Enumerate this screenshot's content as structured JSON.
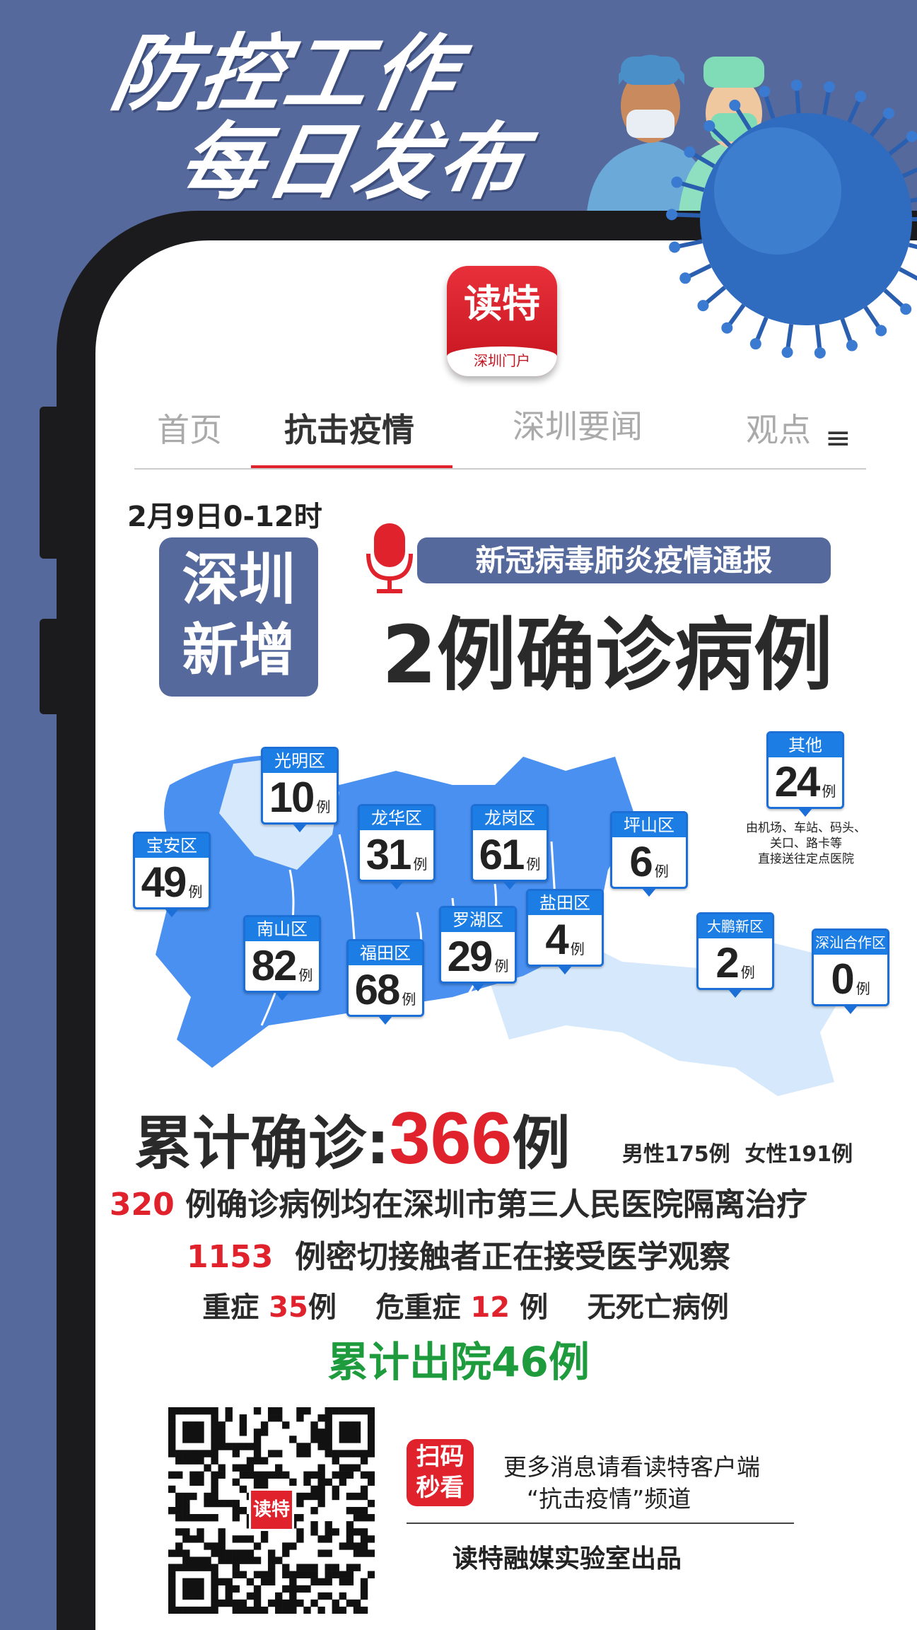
{
  "banner": {
    "line1": "防控工作",
    "line2": "每日发布"
  },
  "logo": {
    "text": "读特",
    "sub": "深圳门户"
  },
  "nav": {
    "tabs": [
      "首页",
      "抗击疫情",
      "深圳要闻",
      "观点"
    ],
    "active": "抗击疫情",
    "menu_icon": "hamburger-icon"
  },
  "report": {
    "date": "2月9日0-12时",
    "box_line1": "深圳",
    "box_line2": "新增",
    "pill": "新冠病毒肺炎疫情通报",
    "headline": "2例确诊病例",
    "mic_icon": "microphone-icon"
  },
  "map": {
    "unit": "例",
    "districts": [
      {
        "name": "宝安区",
        "count": "49"
      },
      {
        "name": "光明区",
        "count": "10"
      },
      {
        "name": "龙华区",
        "count": "31"
      },
      {
        "name": "龙岗区",
        "count": "61"
      },
      {
        "name": "坪山区",
        "count": "6"
      },
      {
        "name": "其他",
        "count": "24"
      },
      {
        "name": "南山区",
        "count": "82"
      },
      {
        "name": "福田区",
        "count": "68"
      },
      {
        "name": "罗湖区",
        "count": "29"
      },
      {
        "name": "盐田区",
        "count": "4"
      },
      {
        "name": "大鹏新区",
        "count": "2"
      },
      {
        "name": "深汕合作区",
        "count": "0"
      }
    ],
    "other_note": [
      "由机场、车站、码头、",
      "关口、路卡等",
      "直接送往定点医院"
    ]
  },
  "summary": {
    "total_label": "累计确诊:",
    "total": "366",
    "total_unit": "例",
    "male": "男性175例",
    "female": "女性191例",
    "hosp_num": "320",
    "hosp_text": "例确诊病例均在深圳市第三人民医院隔离治疗",
    "contact_num": "1153",
    "contact_text": "例密切接触者正在接受医学观察",
    "severe_label": "重症",
    "severe": "35",
    "critical_label": "危重症",
    "critical": "12",
    "unit": "例",
    "death_text": "无死亡病例",
    "discharged": "累计出院46例"
  },
  "footer": {
    "scan_badge_1": "扫码",
    "scan_badge_2": "秒看",
    "more_1": "更多消息请看读特客户端",
    "more_2": "“抗击疫情”频道",
    "credit": "读特融媒实验室出品",
    "qr_logo": "读特"
  },
  "colors": {
    "background": "#56699c",
    "accent_red": "#e0222c",
    "map_blue": "#4a90f0",
    "marker_blue": "#1c7ee4",
    "green": "#1e9b3c"
  }
}
